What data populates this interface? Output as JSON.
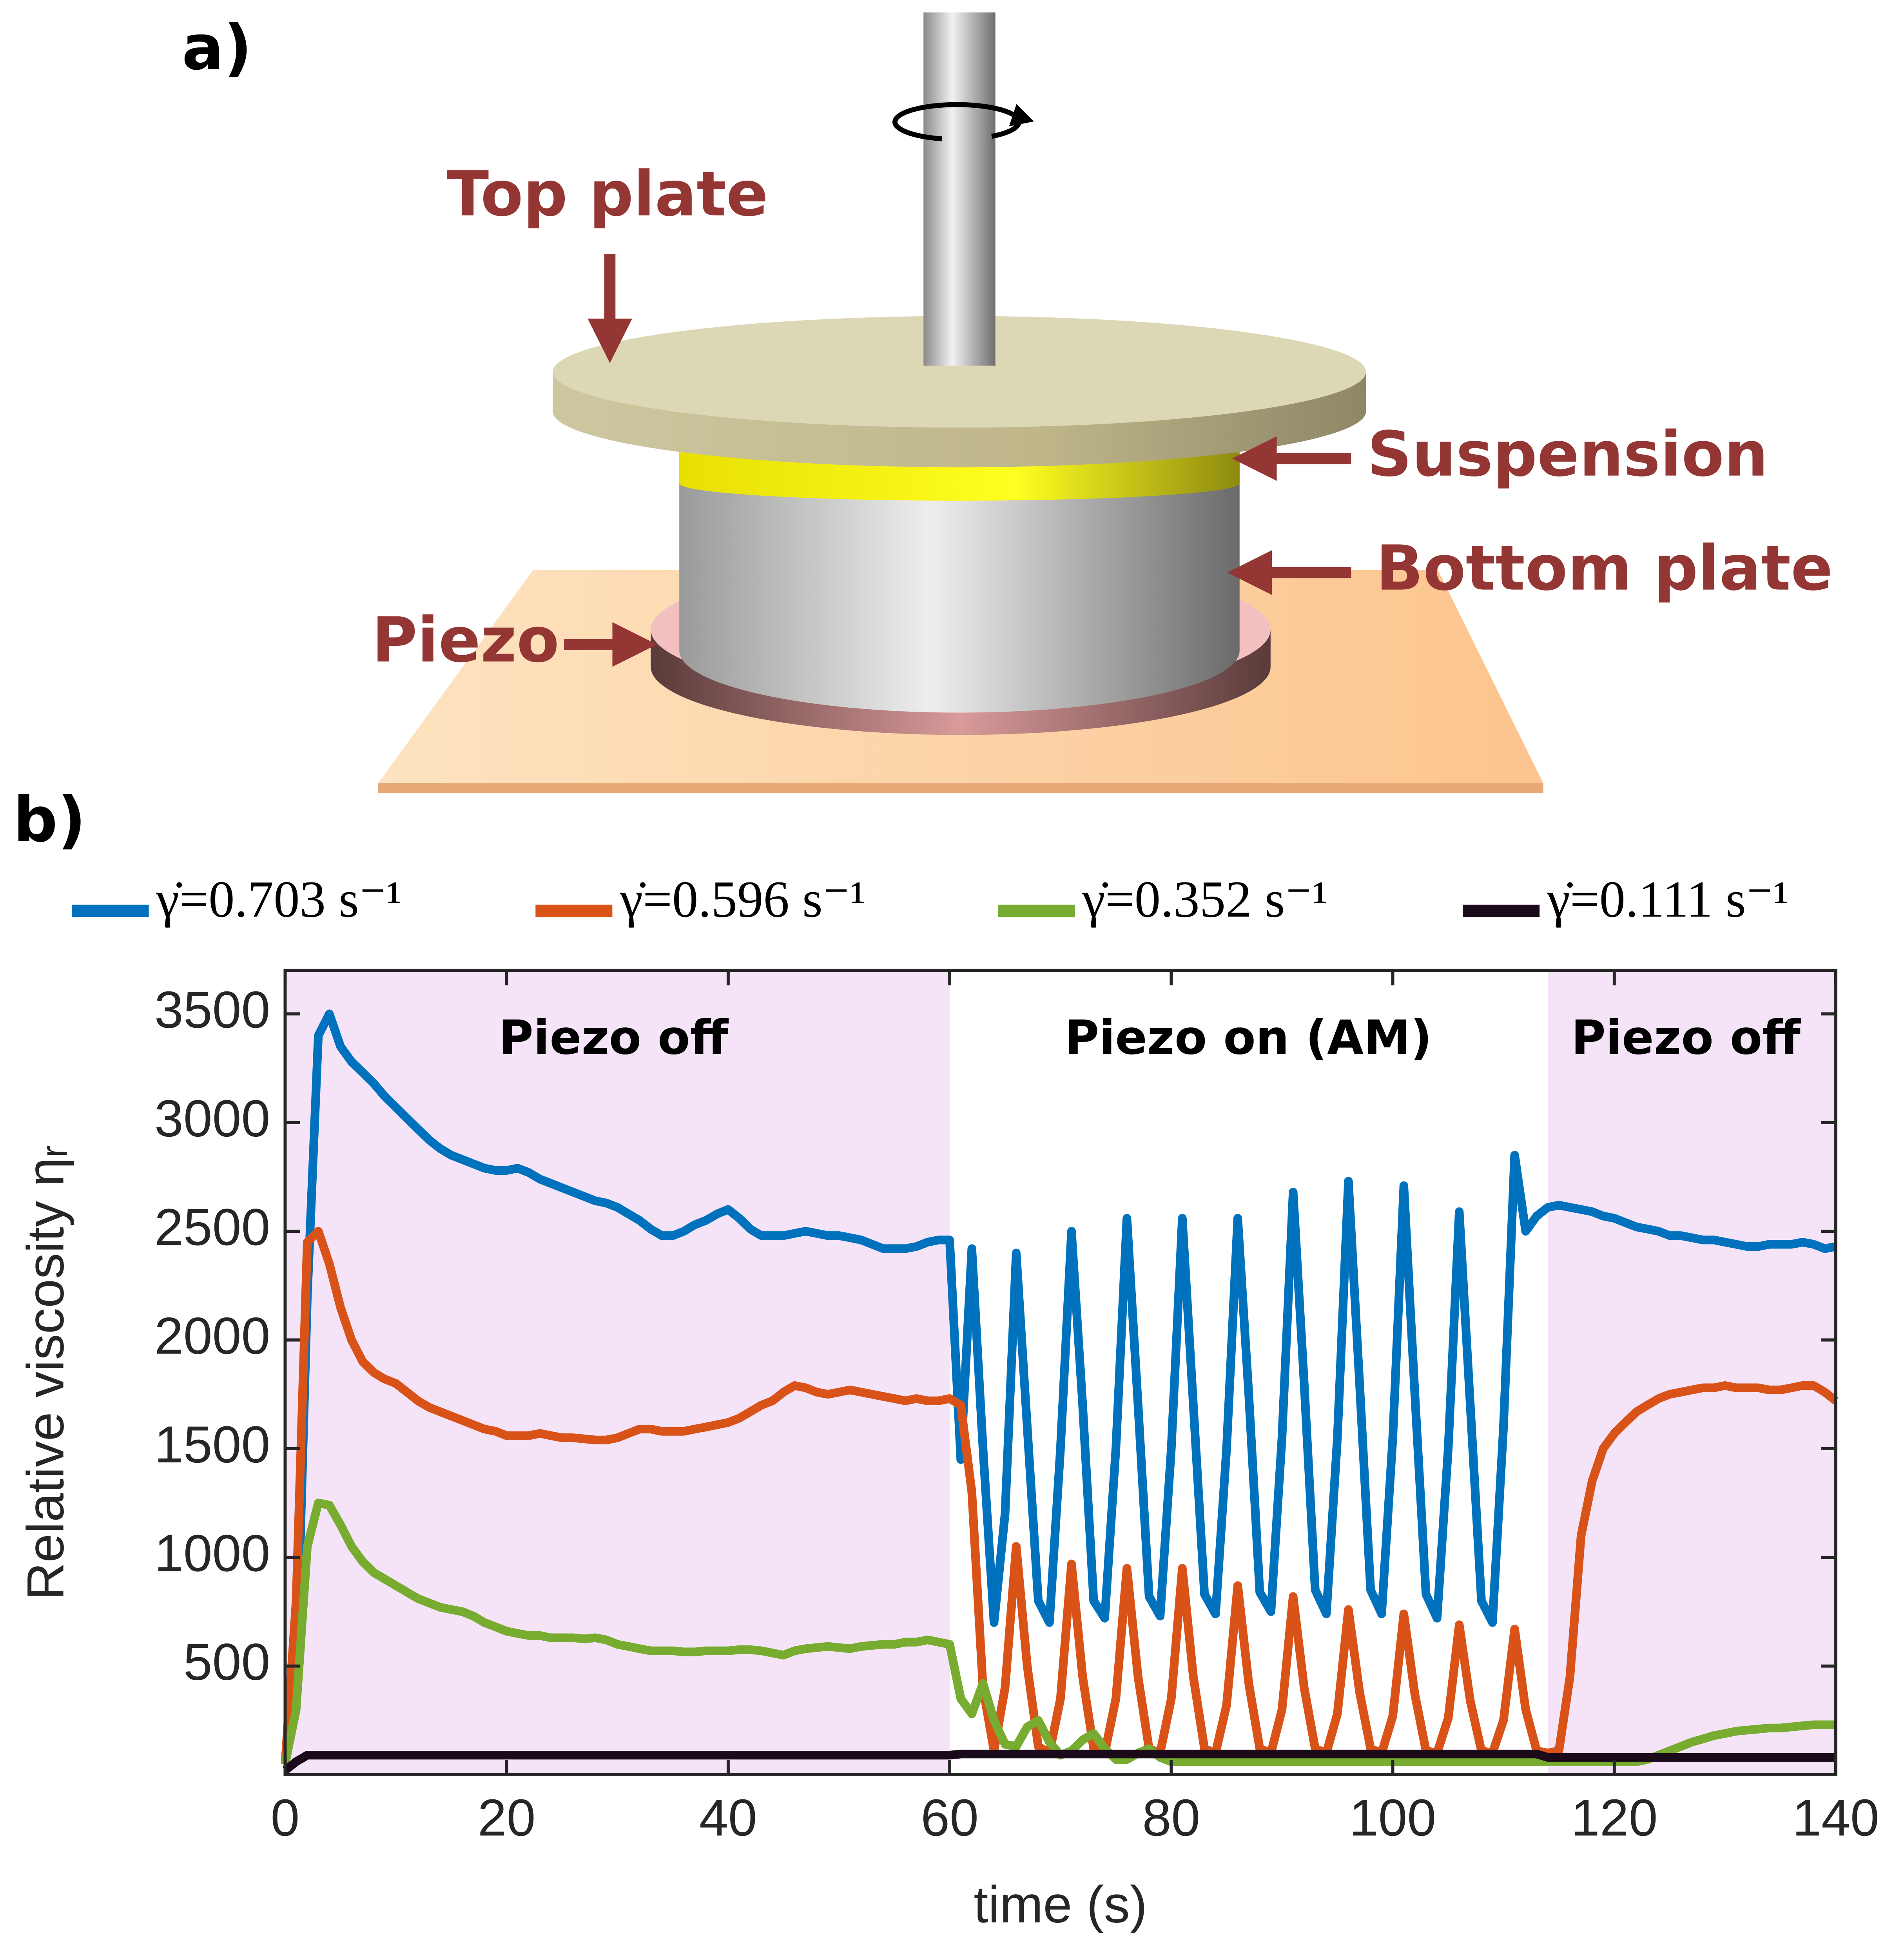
{
  "diagram": {
    "panel_label": "a)",
    "labels": [
      "Top plate",
      "Suspension",
      "Bottom plate",
      "Piezo"
    ]
  },
  "chart_data": {
    "type": "line",
    "panel_label": "b)",
    "x_label": "time (s)",
    "y_label": "Relative viscosity ηᵣ",
    "annotations": [
      "Piezo off",
      "Piezo on (AM)",
      "Piezo off"
    ],
    "shaded_regions": [
      [
        0,
        60
      ],
      [
        114,
        140
      ]
    ],
    "shade_color": "#f5e4f8",
    "xlim": [
      0,
      140
    ],
    "xticks": [
      0,
      20,
      40,
      60,
      80,
      100,
      120,
      140
    ],
    "ylim": [
      0,
      3700
    ],
    "yticks": [
      500,
      1000,
      1500,
      2000,
      2500,
      3000,
      3500
    ],
    "grid": false,
    "legend": "top",
    "x": [
      0,
      1,
      2,
      3,
      4,
      5,
      6,
      7,
      8,
      9,
      10,
      11,
      12,
      13,
      14,
      15,
      16,
      17,
      18,
      19,
      20,
      21,
      22,
      23,
      24,
      25,
      26,
      27,
      28,
      29,
      30,
      31,
      32,
      33,
      34,
      35,
      36,
      37,
      38,
      39,
      40,
      41,
      42,
      43,
      44,
      45,
      46,
      47,
      48,
      49,
      50,
      51,
      52,
      53,
      54,
      55,
      56,
      57,
      58,
      59,
      60,
      61,
      62,
      63,
      64,
      65,
      66,
      67,
      68,
      69,
      70,
      71,
      72,
      73,
      74,
      75,
      76,
      77,
      78,
      79,
      80,
      81,
      82,
      83,
      84,
      85,
      86,
      87,
      88,
      89,
      90,
      91,
      92,
      93,
      94,
      95,
      96,
      97,
      98,
      99,
      100,
      101,
      102,
      103,
      104,
      105,
      106,
      107,
      108,
      109,
      110,
      111,
      112,
      113,
      114,
      115,
      116,
      117,
      118,
      119,
      120,
      121,
      122,
      123,
      124,
      125,
      126,
      127,
      128,
      129,
      130,
      131,
      132,
      133,
      134,
      135,
      136,
      137,
      138,
      139,
      140
    ],
    "series": [
      {
        "name": "γ̇=0.703 s⁻¹",
        "color": "#0072bd",
        "values": [
          50,
          400,
          2200,
          3400,
          3500,
          3350,
          3280,
          3230,
          3180,
          3120,
          3070,
          3020,
          2970,
          2920,
          2880,
          2850,
          2830,
          2810,
          2790,
          2780,
          2780,
          2790,
          2770,
          2740,
          2720,
          2700,
          2680,
          2660,
          2640,
          2630,
          2610,
          2580,
          2550,
          2510,
          2480,
          2480,
          2500,
          2530,
          2550,
          2580,
          2600,
          2560,
          2510,
          2480,
          2480,
          2480,
          2490,
          2500,
          2490,
          2480,
          2480,
          2470,
          2460,
          2440,
          2420,
          2420,
          2420,
          2430,
          2450,
          2460,
          2460,
          1450,
          2420,
          1500,
          700,
          1200,
          2400,
          1600,
          800,
          700,
          1500,
          2500,
          1700,
          800,
          720,
          1500,
          2560,
          1700,
          820,
          730,
          1500,
          2560,
          1700,
          830,
          740,
          1500,
          2560,
          1750,
          840,
          750,
          1550,
          2680,
          1800,
          850,
          740,
          1550,
          2730,
          1800,
          850,
          740,
          1550,
          2710,
          1750,
          830,
          720,
          1500,
          2590,
          1700,
          800,
          700,
          1600,
          2850,
          2500,
          2570,
          2610,
          2620,
          2610,
          2600,
          2590,
          2570,
          2560,
          2540,
          2520,
          2510,
          2500,
          2480,
          2480,
          2470,
          2460,
          2460,
          2450,
          2440,
          2430,
          2430,
          2440,
          2440,
          2440,
          2450,
          2440,
          2420,
          2430
        ]
      },
      {
        "name": "γ̇=0.596 s⁻¹",
        "color": "#d95319",
        "values": [
          50,
          800,
          2450,
          2500,
          2350,
          2150,
          2000,
          1900,
          1850,
          1820,
          1800,
          1760,
          1720,
          1690,
          1670,
          1650,
          1630,
          1610,
          1590,
          1580,
          1560,
          1560,
          1560,
          1570,
          1560,
          1550,
          1550,
          1545,
          1540,
          1540,
          1550,
          1570,
          1590,
          1590,
          1580,
          1580,
          1580,
          1590,
          1600,
          1610,
          1620,
          1640,
          1670,
          1700,
          1720,
          1760,
          1790,
          1780,
          1760,
          1750,
          1760,
          1770,
          1760,
          1750,
          1740,
          1730,
          1720,
          1730,
          1720,
          1720,
          1730,
          1700,
          1300,
          400,
          110,
          400,
          1050,
          500,
          130,
          100,
          350,
          970,
          450,
          120,
          100,
          350,
          950,
          450,
          120,
          100,
          350,
          950,
          450,
          120,
          100,
          320,
          870,
          420,
          120,
          100,
          300,
          820,
          400,
          120,
          100,
          280,
          760,
          380,
          120,
          100,
          270,
          740,
          370,
          110,
          100,
          260,
          690,
          340,
          110,
          100,
          250,
          670,
          300,
          110,
          100,
          110,
          450,
          1100,
          1350,
          1500,
          1570,
          1620,
          1670,
          1700,
          1730,
          1750,
          1760,
          1770,
          1780,
          1780,
          1790,
          1780,
          1780,
          1780,
          1770,
          1770,
          1780,
          1790,
          1790,
          1760,
          1720
        ]
      },
      {
        "name": "γ̇=0.352 s⁻¹",
        "color": "#77ac30",
        "values": [
          50,
          300,
          1050,
          1250,
          1240,
          1150,
          1050,
          980,
          930,
          900,
          870,
          840,
          810,
          790,
          770,
          760,
          750,
          730,
          700,
          680,
          660,
          650,
          640,
          640,
          630,
          630,
          630,
          625,
          630,
          620,
          600,
          590,
          580,
          570,
          570,
          570,
          565,
          565,
          570,
          570,
          570,
          575,
          575,
          570,
          560,
          550,
          570,
          580,
          585,
          590,
          585,
          580,
          590,
          595,
          600,
          600,
          610,
          610,
          620,
          610,
          600,
          350,
          280,
          420,
          250,
          140,
          130,
          220,
          250,
          150,
          90,
          110,
          160,
          190,
          120,
          70,
          70,
          100,
          120,
          80,
          60,
          60,
          60,
          60,
          60,
          60,
          60,
          60,
          60,
          60,
          60,
          60,
          60,
          60,
          60,
          60,
          60,
          60,
          60,
          60,
          60,
          60,
          60,
          60,
          60,
          60,
          60,
          60,
          60,
          60,
          60,
          60,
          60,
          60,
          60,
          60,
          60,
          60,
          60,
          60,
          60,
          60,
          60,
          70,
          90,
          110,
          130,
          150,
          165,
          180,
          190,
          200,
          205,
          210,
          215,
          215,
          220,
          225,
          230,
          230,
          230
        ]
      },
      {
        "name": "γ̇=0.111 s⁻¹",
        "color": "#1a0a1a",
        "values": [
          20,
          60,
          90,
          90,
          90,
          90,
          90,
          90,
          90,
          90,
          90,
          90,
          90,
          90,
          90,
          90,
          90,
          90,
          90,
          90,
          90,
          90,
          90,
          90,
          90,
          90,
          90,
          90,
          90,
          90,
          90,
          90,
          90,
          90,
          90,
          90,
          90,
          90,
          90,
          90,
          90,
          90,
          90,
          90,
          90,
          90,
          90,
          90,
          90,
          90,
          90,
          90,
          90,
          90,
          90,
          90,
          90,
          90,
          90,
          90,
          90,
          95,
          95,
          95,
          95,
          95,
          95,
          95,
          95,
          95,
          95,
          95,
          95,
          95,
          95,
          95,
          95,
          95,
          95,
          95,
          95,
          95,
          95,
          95,
          95,
          95,
          95,
          95,
          95,
          95,
          95,
          95,
          95,
          95,
          95,
          95,
          95,
          95,
          95,
          95,
          95,
          95,
          95,
          95,
          95,
          95,
          95,
          95,
          95,
          95,
          95,
          95,
          95,
          95,
          80,
          80,
          80,
          80,
          80,
          80,
          80,
          80,
          80,
          80,
          80,
          80,
          80,
          80,
          80,
          80,
          80,
          80,
          80,
          80,
          80,
          80,
          80,
          80,
          80,
          80,
          80
        ]
      }
    ]
  }
}
